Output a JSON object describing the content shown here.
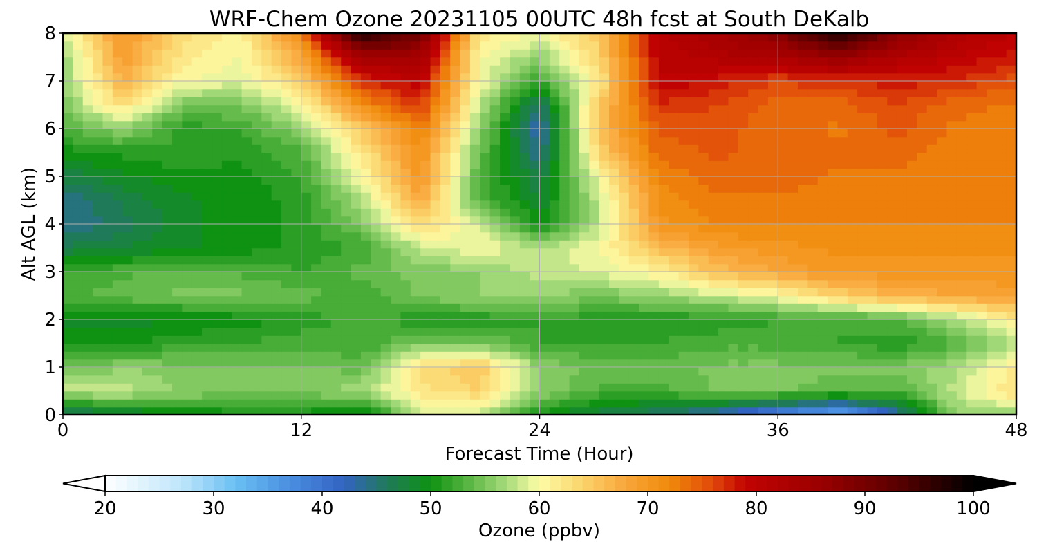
{
  "chart_data": {
    "type": "heatmap",
    "title": "WRF-Chem Ozone  20231105 00UTC 48h fcst at South DeKalb",
    "xlabel": "Forecast Time (Hour)",
    "ylabel": "Alt AGL (km)",
    "xlim": [
      0,
      48
    ],
    "ylim": [
      0,
      8
    ],
    "x_ticks": [
      "0",
      "12",
      "24",
      "36",
      "48"
    ],
    "y_ticks": [
      "0",
      "1",
      "2",
      "3",
      "4",
      "5",
      "6",
      "7",
      "8"
    ],
    "grid": true,
    "colorbar": {
      "label": "Ozone  (ppbv)",
      "range": [
        20,
        100
      ],
      "ticks": [
        "20",
        "30",
        "40",
        "50",
        "60",
        "70",
        "80",
        "90",
        "100"
      ],
      "extend": "both",
      "orientation": "horizontal",
      "placement": "bottom",
      "colors": [
        [
          20,
          "#ffffff"
        ],
        [
          27,
          "#bfe6fb"
        ],
        [
          32,
          "#69c0f3"
        ],
        [
          37,
          "#4a8ee0"
        ],
        [
          42,
          "#3363c2"
        ],
        [
          46,
          "#1f7a5a"
        ],
        [
          50,
          "#0f9212"
        ],
        [
          53,
          "#4eb03c"
        ],
        [
          57,
          "#a8db7c"
        ],
        [
          60,
          "#fdfca6"
        ],
        [
          64,
          "#fbd46b"
        ],
        [
          68,
          "#f8a53a"
        ],
        [
          72,
          "#f08a0a"
        ],
        [
          76,
          "#e0480a"
        ],
        [
          79,
          "#c20202"
        ],
        [
          86,
          "#9a0000"
        ],
        [
          93,
          "#5a0000"
        ],
        [
          100,
          "#000000"
        ]
      ]
    },
    "x": [
      0,
      3,
      6,
      9,
      12,
      15,
      18,
      21,
      24,
      27,
      30,
      33,
      36,
      39,
      42,
      45,
      48
    ],
    "y": [
      0,
      0.5,
      1,
      1.5,
      2,
      2.5,
      3,
      3.5,
      4,
      4.5,
      5,
      5.5,
      6,
      6.5,
      7,
      7.5,
      8
    ],
    "z": [
      [
        45,
        47,
        49,
        50,
        50,
        48,
        58,
        58,
        50,
        47,
        45,
        42,
        37,
        33,
        43,
        56,
        56
      ],
      [
        58,
        58,
        56,
        55,
        55,
        57,
        62,
        64,
        56,
        53,
        53,
        55,
        55,
        54,
        53,
        58,
        63
      ],
      [
        54,
        56,
        55,
        55,
        55,
        54,
        63,
        65,
        56,
        54,
        54,
        55,
        55,
        55,
        55,
        57,
        62
      ],
      [
        51,
        50,
        52,
        52,
        53,
        52,
        55,
        55,
        52,
        52,
        52,
        53,
        53,
        52,
        51,
        53,
        57
      ],
      [
        49,
        49,
        49,
        50,
        51,
        53,
        51,
        51,
        52,
        51,
        51,
        51,
        52,
        52,
        53,
        57,
        62
      ],
      [
        53,
        54,
        55,
        55,
        54,
        52,
        55,
        56,
        56,
        55,
        56,
        58,
        60,
        64,
        67,
        68,
        69
      ],
      [
        52,
        53,
        54,
        53,
        52,
        54,
        55,
        56,
        58,
        59,
        61,
        66,
        68,
        70,
        70,
        70,
        70
      ],
      [
        47,
        48,
        49,
        50,
        51,
        52,
        58,
        60,
        57,
        60,
        66,
        69,
        70,
        71,
        71,
        71,
        71
      ],
      [
        44,
        46,
        49,
        50,
        51,
        55,
        63,
        59,
        50,
        58,
        70,
        72,
        72,
        72,
        72,
        72,
        72
      ],
      [
        44,
        47,
        49,
        50,
        51,
        57,
        68,
        53,
        48,
        58,
        71,
        73,
        73,
        73,
        73,
        72,
        72
      ],
      [
        47,
        49,
        50,
        50,
        52,
        60,
        70,
        53,
        47,
        60,
        72,
        74,
        74,
        73,
        73,
        72,
        72
      ],
      [
        50,
        51,
        52,
        51,
        53,
        62,
        71,
        54,
        44,
        64,
        74,
        75,
        74,
        74,
        74,
        72,
        72
      ],
      [
        53,
        56,
        51,
        52,
        56,
        65,
        73,
        56,
        42,
        66,
        75,
        75,
        74,
        73,
        75,
        73,
        72
      ],
      [
        55,
        63,
        55,
        55,
        60,
        71,
        77,
        58,
        45,
        65,
        77,
        76,
        74,
        74,
        76,
        74,
        73
      ],
      [
        56,
        67,
        60,
        59,
        64,
        77,
        80,
        60,
        52,
        62,
        80,
        78,
        76,
        77,
        78,
        77,
        75
      ],
      [
        56,
        69,
        62,
        60,
        68,
        84,
        84,
        60,
        56,
        64,
        80,
        82,
        83,
        86,
        82,
        80,
        78
      ],
      [
        58,
        70,
        63,
        61,
        72,
        98,
        90,
        62,
        60,
        65,
        81,
        84,
        88,
        98,
        88,
        82,
        80
      ]
    ]
  }
}
